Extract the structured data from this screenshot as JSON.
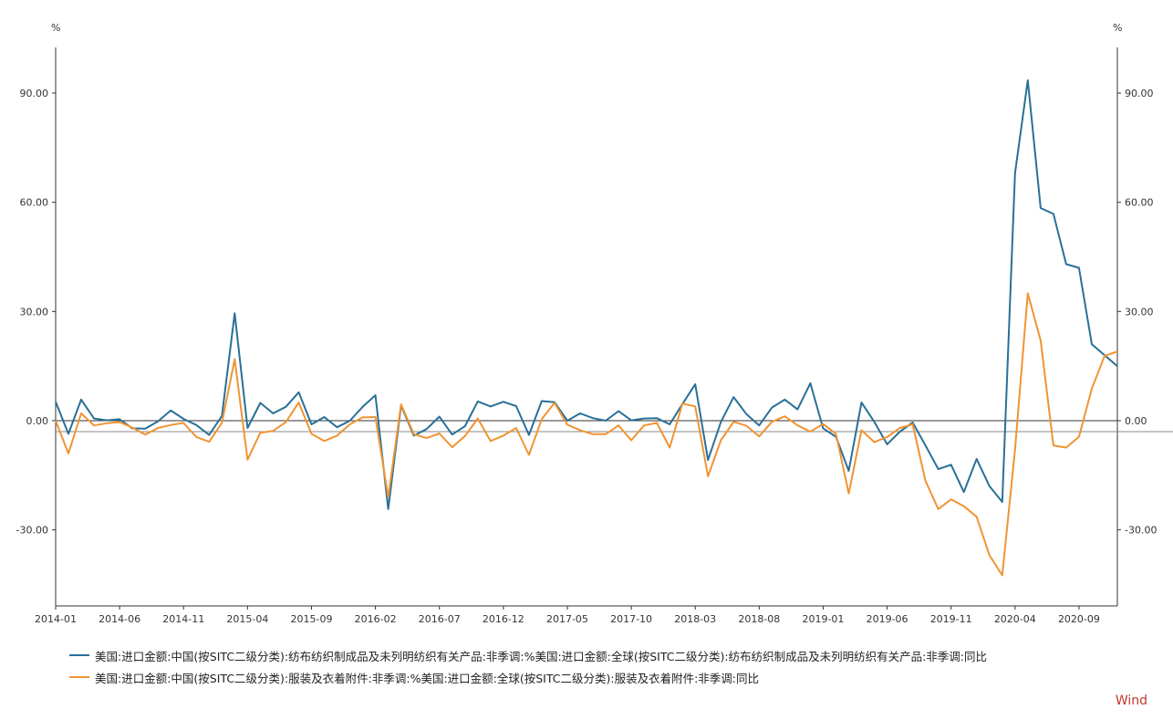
{
  "chart_data": {
    "type": "line",
    "y_unit_left": "%",
    "y_unit_right": "%",
    "ylim": [
      -50,
      103
    ],
    "y_ticks": [
      -30,
      0,
      30,
      60,
      90
    ],
    "y_tick_labels": [
      "-30.00",
      "0.00",
      "30.00",
      "60.00",
      "90.00"
    ],
    "x_tick_labels": [
      "2014-01",
      "2014-06",
      "2014-11",
      "2015-04",
      "2015-09",
      "2016-02",
      "2016-07",
      "2016-12",
      "2017-05",
      "2017-10",
      "2018-03",
      "2018-08",
      "2019-01",
      "2019-06",
      "2019-11",
      "2020-04",
      "2020-09"
    ],
    "x_start": "2014-01",
    "x_end": "2020-12",
    "legend_position": "bottom-left",
    "series": [
      {
        "name": "美国:进口金额:中国(按SITC二级分类):纺布纺织制成品及未列明纺织有关产品:非季调:%美国:进口金额:全球(按SITC二级分类):纺布纺织制成品及未列明纺织有关产品:非季调:同比",
        "color": "#2a7097",
        "values": [
          5.2,
          -3.6,
          5.8,
          0.6,
          0.1,
          0.4,
          -2.1,
          -2.2,
          -0.2,
          2.8,
          0.5,
          -1.2,
          -3.9,
          1.3,
          29.5,
          -2.0,
          4.9,
          2.0,
          3.8,
          7.8,
          -1.0,
          1.0,
          -1.8,
          0.0,
          3.8,
          7.0,
          -24.3,
          4.2,
          -4.1,
          -2.3,
          1.1,
          -3.8,
          -1.5,
          5.3,
          3.9,
          5.2,
          4.0,
          -3.9,
          5.4,
          5.1,
          0.0,
          2.0,
          0.7,
          0.0,
          2.6,
          0.1,
          0.6,
          0.7,
          -1.0,
          4.6,
          10.0,
          -10.8,
          -0.4,
          6.5,
          1.8,
          -1.3,
          3.6,
          5.8,
          3.1,
          10.3,
          -2.1,
          -4.4,
          -13.8,
          5.0,
          -0.3,
          -6.5,
          -3.0,
          -0.5,
          -6.8,
          -13.3,
          -12.1,
          -19.6,
          -10.5,
          -18.0,
          -22.3,
          68.0,
          93.5,
          58.4,
          56.8,
          43.0,
          42.0,
          21.0,
          18.0,
          15.0
        ]
      },
      {
        "name": "美国:进口金额:中国(按SITC二级分类):服装及衣着附件:非季调:%美国:进口金额:全球(按SITC二级分类):服装及衣着附件:非季调:同比",
        "color": "#f09433",
        "values": [
          0.0,
          -9.0,
          2.0,
          -1.3,
          -0.7,
          -0.4,
          -1.9,
          -3.8,
          -2.0,
          -1.2,
          -0.6,
          -4.5,
          -5.8,
          -0.6,
          16.9,
          -10.7,
          -3.3,
          -2.8,
          -0.4,
          5.0,
          -3.6,
          -5.6,
          -4.1,
          -1.0,
          0.9,
          1.0,
          -21.0,
          4.5,
          -3.7,
          -4.8,
          -3.5,
          -7.3,
          -4.2,
          0.6,
          -5.6,
          -4.1,
          -2.0,
          -9.4,
          0.4,
          4.9,
          -1.1,
          -2.6,
          -3.7,
          -3.7,
          -1.3,
          -5.4,
          -1.3,
          -0.6,
          -7.4,
          4.7,
          3.9,
          -15.3,
          -5.4,
          -0.3,
          -1.4,
          -4.3,
          -0.3,
          1.2,
          -1.3,
          -3.0,
          -0.9,
          -3.6,
          -20.0,
          -2.6,
          -5.9,
          -4.5,
          -2.0,
          -1.0,
          -16.5,
          -24.3,
          -21.6,
          -23.5,
          -26.4,
          -37.0,
          -42.5,
          -8.0,
          35.0,
          22.0,
          -6.8,
          -7.4,
          -4.4,
          8.8,
          17.8,
          19.0
        ]
      }
    ]
  },
  "watermark": "Wind"
}
